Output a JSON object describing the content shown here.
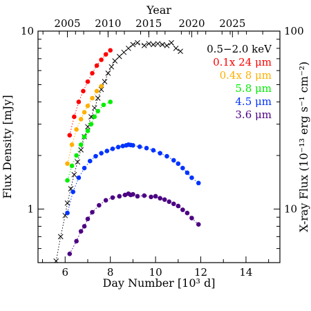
{
  "chart_data": {
    "type": "scatter",
    "xlabel": "Day Number [10³ d]",
    "top_xlabel": "Year",
    "ylabel": "Flux Density [mJy]",
    "right_ylabel": "X-ray Flux (10⁻¹³ erg s⁻¹ cm⁻²)",
    "xlim": [
      4.8,
      15.5
    ],
    "ylim": [
      0.5,
      10
    ],
    "y_scale": "log",
    "right_ylim": [
      5,
      100
    ],
    "right_y_scale": "log",
    "xticks": [
      6,
      8,
      10,
      12,
      14
    ],
    "xtick_labels": [
      "6",
      "8",
      "10",
      "12",
      "14"
    ],
    "top_xticks": [
      {
        "pos": 6.1,
        "label": "2005"
      },
      {
        "pos": 7.9,
        "label": "2010"
      },
      {
        "pos": 9.7,
        "label": "2015"
      },
      {
        "pos": 11.6,
        "label": "2020"
      },
      {
        "pos": 13.4,
        "label": "2025"
      }
    ],
    "yticks": [
      {
        "value": 1,
        "label": "1"
      },
      {
        "value": 10,
        "label": "10"
      }
    ],
    "right_yticks": [
      {
        "value": 10,
        "label": "10"
      },
      {
        "value": 100,
        "label": "100"
      }
    ],
    "legend_position": "top-right",
    "series": [
      {
        "name": "0.5−2.0 keV",
        "color": "#000000",
        "marker": "x",
        "dotted_line": true,
        "x": [
          5.6,
          5.8,
          6.0,
          6.1,
          6.25,
          6.4,
          6.55,
          6.7,
          6.85,
          7.0,
          7.15,
          7.3,
          7.45,
          7.6,
          7.75,
          7.9,
          8.05,
          8.2,
          8.4,
          8.6,
          8.8,
          9.0,
          9.2,
          9.5,
          9.7,
          9.9,
          10.1,
          10.3,
          10.5,
          10.7,
          10.9,
          11.1
        ],
        "y": [
          0.51,
          0.7,
          0.92,
          1.08,
          1.3,
          1.56,
          1.84,
          2.15,
          2.55,
          2.9,
          3.3,
          3.7,
          4.2,
          4.7,
          5.2,
          5.8,
          6.3,
          6.8,
          7.2,
          7.6,
          8.0,
          8.4,
          8.6,
          8.3,
          8.5,
          8.4,
          8.5,
          8.4,
          8.3,
          8.6,
          8.0,
          7.7
        ]
      },
      {
        "name": "0.1x 24 μm",
        "color": "#ff0000",
        "marker": "circle",
        "dotted_line": true,
        "x": [
          6.2,
          6.4,
          6.6,
          6.8,
          7.0,
          7.2,
          7.4,
          7.6,
          7.8,
          8.0
        ],
        "y": [
          2.6,
          3.3,
          4.0,
          4.6,
          5.2,
          5.8,
          6.4,
          6.9,
          7.4,
          7.8
        ]
      },
      {
        "name": "0.4x 8 μm",
        "color": "#ffb000",
        "marker": "circle",
        "dotted_line": true,
        "x": [
          6.1,
          6.3,
          6.5,
          6.7,
          6.85,
          7.0,
          7.2,
          7.4,
          7.6
        ],
        "y": [
          1.8,
          2.3,
          2.8,
          3.2,
          3.5,
          3.8,
          4.2,
          4.6,
          4.9
        ]
      },
      {
        "name": "5.8 μm",
        "color": "#00ee00",
        "marker": "circle",
        "dotted_line": true,
        "x": [
          6.1,
          6.3,
          6.5,
          6.7,
          6.85,
          7.0,
          7.15,
          7.3,
          7.45,
          7.7,
          8.0
        ],
        "y": [
          1.45,
          1.75,
          2.0,
          2.3,
          2.55,
          2.75,
          3.0,
          3.3,
          3.55,
          3.85,
          4.0
        ]
      },
      {
        "name": "4.5 μm",
        "color": "#0033ff",
        "marker": "circle",
        "dotted_line": true,
        "x": [
          6.1,
          6.35,
          6.6,
          6.85,
          7.1,
          7.35,
          7.6,
          7.85,
          8.1,
          8.35,
          8.55,
          8.7,
          8.8,
          8.9,
          9.0,
          9.3,
          9.6,
          9.9,
          10.2,
          10.5,
          10.8,
          11.0,
          11.2,
          11.4,
          11.6,
          11.9
        ],
        "y": [
          0.95,
          1.25,
          1.5,
          1.7,
          1.86,
          1.98,
          2.06,
          2.12,
          2.18,
          2.23,
          2.26,
          2.28,
          2.3,
          2.29,
          2.28,
          2.24,
          2.2,
          2.14,
          2.06,
          1.98,
          1.88,
          1.8,
          1.7,
          1.6,
          1.5,
          1.4
        ]
      },
      {
        "name": "3.6 μm",
        "color": "#4b0082",
        "marker": "circle",
        "dotted_line": true,
        "x": [
          6.2,
          6.5,
          6.7,
          6.85,
          7.0,
          7.2,
          7.5,
          7.8,
          8.1,
          8.4,
          8.65,
          8.8,
          8.9,
          9.0,
          9.2,
          9.5,
          9.8,
          10.0,
          10.2,
          10.4,
          10.6,
          10.8,
          11.0,
          11.2,
          11.4,
          11.6,
          11.9
        ],
        "y": [
          0.56,
          0.66,
          0.75,
          0.8,
          0.88,
          0.96,
          1.05,
          1.12,
          1.16,
          1.18,
          1.2,
          1.22,
          1.2,
          1.21,
          1.18,
          1.19,
          1.17,
          1.18,
          1.15,
          1.13,
          1.1,
          1.07,
          1.04,
          0.99,
          0.95,
          0.89,
          0.82
        ]
      }
    ]
  }
}
